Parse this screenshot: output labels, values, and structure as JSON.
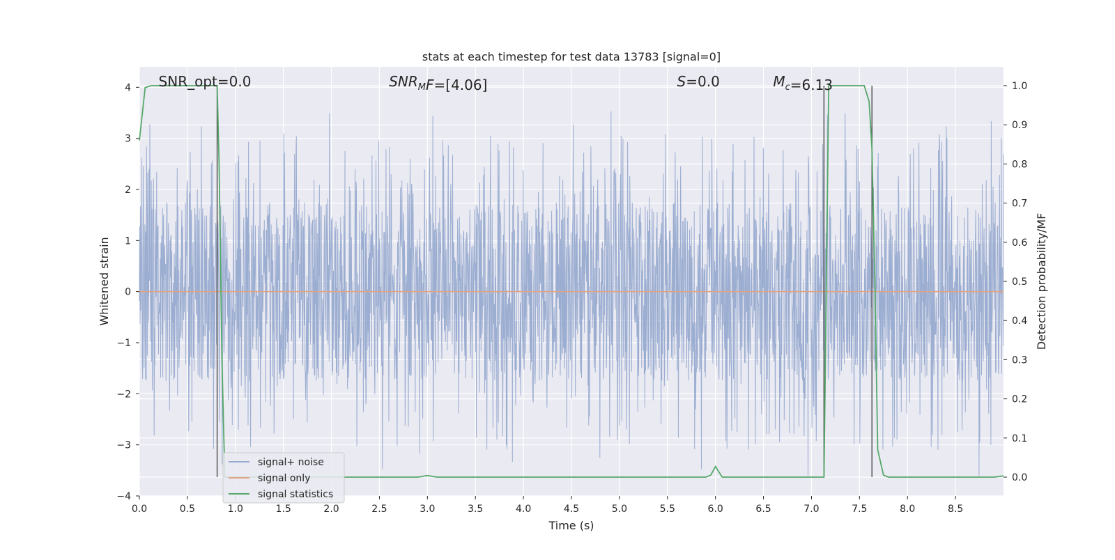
{
  "chart_data": {
    "type": "line",
    "title": "stats at each timestep for test data 13783 [signal=0]",
    "xlabel": "Time (s)",
    "ylabel": "Whitened strain",
    "y2label": "Detection probability/MF",
    "xlim": [
      0,
      9.0
    ],
    "ylim": [
      -4,
      4.4
    ],
    "y2lim": [
      -0.048,
      1.048
    ],
    "xticks": [
      "0.0",
      "0.5",
      "1.0",
      "1.5",
      "2.0",
      "2.5",
      "3.0",
      "3.5",
      "4.0",
      "4.5",
      "5.0",
      "5.5",
      "6.0",
      "6.5",
      "7.0",
      "7.5",
      "8.0",
      "8.5"
    ],
    "yticks": [
      "4",
      "3",
      "2",
      "1",
      "0",
      "−1",
      "−2",
      "−3",
      "−4"
    ],
    "y2ticks": [
      "1.0",
      "0.9",
      "0.8",
      "0.7",
      "0.6",
      "0.5",
      "0.4",
      "0.3",
      "0.2",
      "0.1",
      "0.0"
    ],
    "grid": true,
    "legend_position": "bottom-left",
    "annotations": [
      {
        "parts": [
          {
            "t": "SNR_opt=0.0",
            "i": false
          }
        ],
        "x": 0.2
      },
      {
        "parts": [
          {
            "t": "SNR",
            "i": true
          },
          {
            "t": "M",
            "i": true,
            "sub": true
          },
          {
            "t": "F",
            "i": true
          },
          {
            "t": "=[4.06]",
            "i": false
          }
        ],
        "x": 2.6
      },
      {
        "parts": [
          {
            "t": "S",
            "i": true
          },
          {
            "t": "=0.0",
            "i": false
          }
        ],
        "x": 5.6
      },
      {
        "parts": [
          {
            "t": "M",
            "i": true
          },
          {
            "t": "c",
            "i": true,
            "sub": true
          },
          {
            "t": "=6.13",
            "i": false
          }
        ],
        "x": 6.6
      }
    ],
    "vlines": [
      0.81,
      7.13,
      7.63
    ],
    "series": [
      {
        "name": "signal+ noise",
        "color": "#97aacf",
        "kind": "noise",
        "x_range": [
          0,
          9.0
        ],
        "core_amplitude": 1.75,
        "peak_max": 3.7,
        "peak_min": -3.6
      },
      {
        "name": "signal only",
        "color": "#e1a381",
        "kind": "constant",
        "value": 0
      },
      {
        "name": "signal statistics",
        "color": "#55a868",
        "axis": "right",
        "x": [
          0,
          0.06,
          0.12,
          0.3,
          0.5,
          0.7,
          0.79,
          0.81,
          0.83,
          0.86,
          0.89,
          1.0,
          1.5,
          2.0,
          2.5,
          2.9,
          3.0,
          3.1,
          3.5,
          4.0,
          4.5,
          5.0,
          5.5,
          5.9,
          5.95,
          6.0,
          6.07,
          6.5,
          7.0,
          7.1,
          7.13,
          7.18,
          7.25,
          7.5,
          7.55,
          7.6,
          7.63,
          7.66,
          7.69,
          7.75,
          7.8,
          8.0,
          8.5,
          8.9,
          9.0
        ],
        "y": [
          0.86,
          0.995,
          1.0,
          1.0,
          1.0,
          1.0,
          1.0,
          1.0,
          0.8,
          0.3,
          0.0,
          0.0,
          0.0,
          0.0,
          0.0,
          0.0,
          0.004,
          0.0,
          0.0,
          0.0,
          0.0,
          0.0,
          0.0,
          0.0,
          0.005,
          0.027,
          0.0,
          0.0,
          0.0,
          0.0,
          0.0,
          1.0,
          1.0,
          1.0,
          1.0,
          0.96,
          0.84,
          0.5,
          0.07,
          0.005,
          0.0,
          0.0,
          0.0,
          0.0,
          0.003
        ]
      }
    ]
  }
}
